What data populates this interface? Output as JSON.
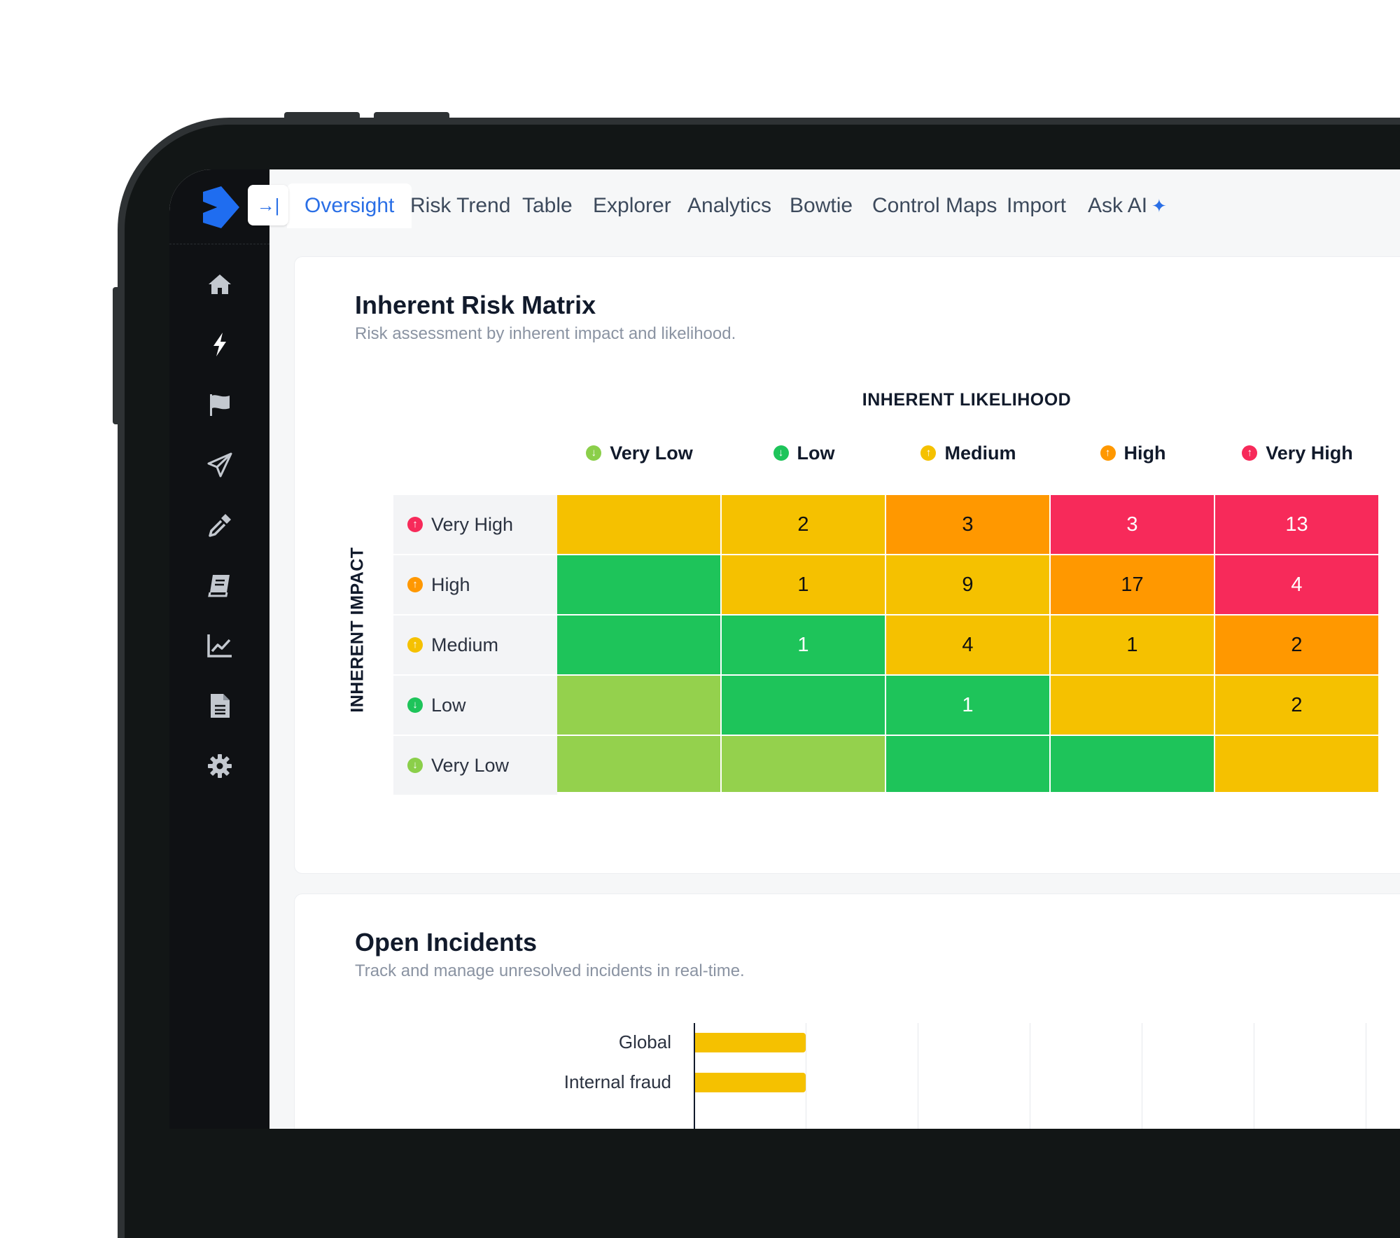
{
  "tabs": [
    {
      "label": "Oversight",
      "active": true
    },
    {
      "label": "Risk Trend"
    },
    {
      "label": "Table"
    },
    {
      "label": "Explorer"
    },
    {
      "label": "Analytics"
    },
    {
      "label": "Bowtie"
    },
    {
      "label": "Control Maps"
    },
    {
      "label": "Import"
    },
    {
      "label": "Ask AI"
    }
  ],
  "sidebar": {
    "icons": [
      "home-icon",
      "bolt-icon",
      "flag-icon",
      "paper-plane-icon",
      "eyedropper-icon",
      "book-icon",
      "chart-line-icon",
      "document-icon",
      "gear-icon"
    ]
  },
  "collapse_button": {
    "icon": "collapse-arrow-icon",
    "glyph": "→|"
  },
  "matrix": {
    "title": "Inherent Risk Matrix",
    "subtitle": "Risk assessment by inherent impact and likelihood.",
    "x_axis_label": "INHERENT LIKELIHOOD",
    "y_axis_label": "INHERENT IMPACT",
    "columns": [
      "Very Low",
      "Low",
      "Medium",
      "High",
      "Very High"
    ],
    "rows": [
      "Very High",
      "High",
      "Medium",
      "Low",
      "Very Low"
    ],
    "level_colors": {
      "Very Low": "#8bcf4a",
      "Low": "#1ec45a",
      "Medium": "#f5c100",
      "High": "#ff9800",
      "Very High": "#f72a5a"
    },
    "level_direction": {
      "Very Low": "down",
      "Low": "down",
      "Medium": "up",
      "High": "up",
      "Very High": "up"
    },
    "cell_colors": [
      [
        "#f5c100",
        "#f5c100",
        "#ff9800",
        "#f72a5a",
        "#f72a5a"
      ],
      [
        "#1ec45a",
        "#f5c100",
        "#f5c100",
        "#ff9800",
        "#f72a5a"
      ],
      [
        "#1ec45a",
        "#1ec45a",
        "#f5c100",
        "#f5c100",
        "#ff9800"
      ],
      [
        "#94d14d",
        "#1ec45a",
        "#1ec45a",
        "#f5c100",
        "#f5c100"
      ],
      [
        "#94d14d",
        "#94d14d",
        "#1ec45a",
        "#1ec45a",
        "#f5c100"
      ]
    ],
    "cell_values": [
      [
        "",
        "2",
        "3",
        "3",
        "13"
      ],
      [
        "",
        "1",
        "9",
        "17",
        "4"
      ],
      [
        "",
        "1",
        "4",
        "1",
        "2"
      ],
      [
        "",
        "",
        "1",
        "",
        "2"
      ],
      [
        "",
        "",
        "",
        "",
        ""
      ]
    ]
  },
  "incidents": {
    "title": "Open Incidents",
    "subtitle": "Track and manage unresolved incidents in real-time.",
    "bar_color": "#f5c100",
    "bars": [
      {
        "label": "Global",
        "value": 1
      },
      {
        "label": "Internal fraud",
        "value": 1
      }
    ]
  }
}
